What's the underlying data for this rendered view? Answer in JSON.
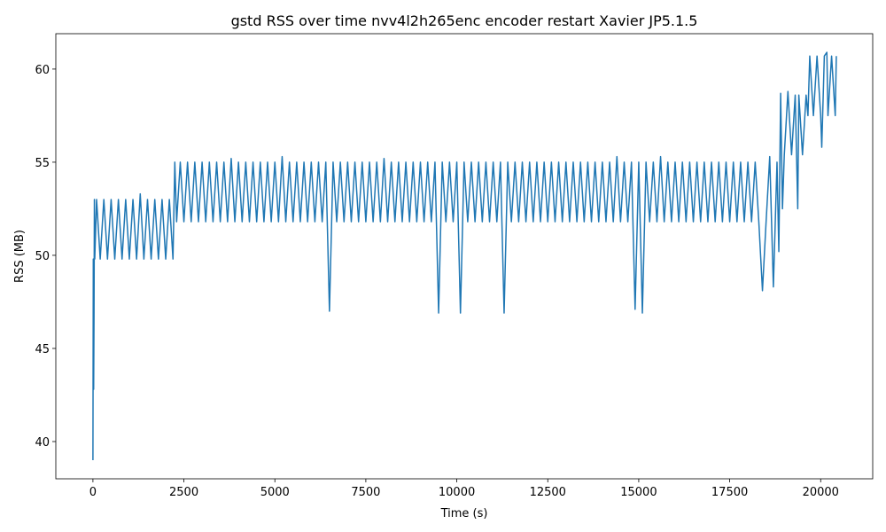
{
  "chart_data": {
    "type": "line",
    "title": "gstd RSS over time nvv4l2h265enc encoder restart Xavier JP5.1.5",
    "x_label": "Time (s)",
    "y_label": "RSS (MB)",
    "color": "#1f77b4",
    "xlim": [
      -1020,
      21430
    ],
    "ylim": [
      38.0,
      61.9
    ],
    "xticks": [
      0,
      2500,
      5000,
      7500,
      10000,
      12500,
      15000,
      17500,
      20000
    ],
    "yticks": [
      40,
      45,
      50,
      55,
      60
    ],
    "x": [
      0,
      10,
      20,
      30,
      40,
      50,
      100,
      200,
      300,
      400,
      500,
      600,
      700,
      800,
      900,
      1000,
      1100,
      1200,
      1300,
      1400,
      1500,
      1600,
      1700,
      1800,
      1900,
      2000,
      2100,
      2200,
      2250,
      2300,
      2400,
      2500,
      2600,
      2700,
      2800,
      2900,
      3000,
      3100,
      3200,
      3300,
      3400,
      3500,
      3600,
      3700,
      3800,
      3900,
      4000,
      4100,
      4200,
      4300,
      4400,
      4500,
      4600,
      4700,
      4800,
      4900,
      5000,
      5100,
      5200,
      5300,
      5400,
      5500,
      5600,
      5700,
      5800,
      5900,
      6000,
      6100,
      6200,
      6300,
      6400,
      6500,
      6600,
      6700,
      6800,
      6900,
      7000,
      7100,
      7200,
      7300,
      7400,
      7500,
      7600,
      7700,
      7800,
      7900,
      8000,
      8100,
      8200,
      8300,
      8400,
      8500,
      8600,
      8700,
      8800,
      8900,
      9000,
      9100,
      9200,
      9300,
      9400,
      9500,
      9600,
      9700,
      9800,
      9900,
      10000,
      10100,
      10200,
      10300,
      10400,
      10500,
      10600,
      10700,
      10800,
      10900,
      11000,
      11100,
      11200,
      11300,
      11400,
      11500,
      11600,
      11700,
      11800,
      11900,
      12000,
      12100,
      12200,
      12300,
      12400,
      12500,
      12600,
      12700,
      12800,
      12900,
      13000,
      13100,
      13200,
      13300,
      13400,
      13500,
      13600,
      13700,
      13800,
      13900,
      14000,
      14100,
      14200,
      14300,
      14400,
      14500,
      14600,
      14700,
      14800,
      14900,
      15000,
      15100,
      15200,
      15300,
      15400,
      15500,
      15600,
      15700,
      15800,
      15900,
      16000,
      16100,
      16200,
      16300,
      16400,
      16500,
      16600,
      16700,
      16800,
      16900,
      17000,
      17100,
      17200,
      17300,
      17400,
      17500,
      17600,
      17700,
      17800,
      17900,
      18000,
      18100,
      18200,
      18300,
      18400,
      18500,
      18600,
      18700,
      18800,
      18850,
      18900,
      18950,
      19000,
      19100,
      19200,
      19300,
      19370,
      19400,
      19500,
      19600,
      19650,
      19700,
      19800,
      19900,
      20000,
      20030,
      20100,
      20170,
      20200,
      20300,
      20400,
      20430
    ],
    "values": [
      39.0,
      49.8,
      42.8,
      46.7,
      53.0,
      49.8,
      53.0,
      49.8,
      53.0,
      49.8,
      53.0,
      49.8,
      53.0,
      49.8,
      53.0,
      49.8,
      53.0,
      49.8,
      53.3,
      49.8,
      53.0,
      49.8,
      53.0,
      49.8,
      53.0,
      49.8,
      53.0,
      49.8,
      55.0,
      51.8,
      55.0,
      51.8,
      55.0,
      51.8,
      55.0,
      51.8,
      55.0,
      51.8,
      55.0,
      51.8,
      55.0,
      51.8,
      55.0,
      51.8,
      55.2,
      51.8,
      55.0,
      51.8,
      55.0,
      51.8,
      55.0,
      51.8,
      55.0,
      51.8,
      55.0,
      51.8,
      55.0,
      51.8,
      55.3,
      51.8,
      55.0,
      51.8,
      55.0,
      51.8,
      55.0,
      51.8,
      55.0,
      51.8,
      55.0,
      51.8,
      55.0,
      47.0,
      55.0,
      51.8,
      55.0,
      51.8,
      55.0,
      51.8,
      55.0,
      51.8,
      55.0,
      51.8,
      55.0,
      51.8,
      55.0,
      51.8,
      55.2,
      51.8,
      55.0,
      51.8,
      55.0,
      51.8,
      55.0,
      51.8,
      55.0,
      51.8,
      55.0,
      51.8,
      55.0,
      51.8,
      55.0,
      46.9,
      55.0,
      51.8,
      55.0,
      51.8,
      55.0,
      46.9,
      55.0,
      51.8,
      55.0,
      51.8,
      55.0,
      51.8,
      55.0,
      51.8,
      55.0,
      51.8,
      55.0,
      46.9,
      55.0,
      51.8,
      55.0,
      51.8,
      55.0,
      51.8,
      55.0,
      51.8,
      55.0,
      51.8,
      55.0,
      51.8,
      55.0,
      51.8,
      55.0,
      51.8,
      55.0,
      51.8,
      55.0,
      51.8,
      55.0,
      51.8,
      55.0,
      51.8,
      55.0,
      51.8,
      55.0,
      51.8,
      55.0,
      51.8,
      55.3,
      51.8,
      55.0,
      51.8,
      55.0,
      47.1,
      55.0,
      46.9,
      55.0,
      51.8,
      55.0,
      51.8,
      55.3,
      51.8,
      55.0,
      51.8,
      55.0,
      51.8,
      55.0,
      51.8,
      55.0,
      51.8,
      55.0,
      51.8,
      55.0,
      51.8,
      55.0,
      51.8,
      55.0,
      51.8,
      55.0,
      51.8,
      55.0,
      51.8,
      55.0,
      51.8,
      55.0,
      51.8,
      55.0,
      51.8,
      48.1,
      51.8,
      55.3,
      48.3,
      55.0,
      50.2,
      58.7,
      52.5,
      55.4,
      58.8,
      55.4,
      58.6,
      52.5,
      58.6,
      55.4,
      58.6,
      57.5,
      60.7,
      57.5,
      60.7,
      57.5,
      55.8,
      60.7,
      60.9,
      57.5,
      60.7,
      57.5,
      60.7
    ]
  }
}
